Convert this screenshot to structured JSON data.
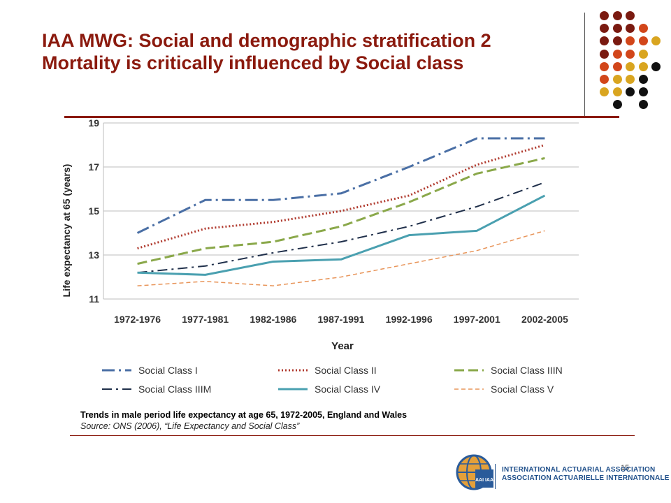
{
  "header": {
    "title_line1": "IAA MWG: Social and demographic stratification 2",
    "title_line2": "Mortality is critically influenced by Social class"
  },
  "decor": {
    "dot_colors": {
      "dark_red": "#7a1a10",
      "orange": "#d2461a",
      "gold": "#d9a520",
      "black": "#111111"
    }
  },
  "chart_data": {
    "type": "line",
    "title": "",
    "xlabel": "Year",
    "ylabel": "Life expectancy at 65 (years)",
    "categories": [
      "1972-1976",
      "1977-1981",
      "1982-1986",
      "1987-1991",
      "1992-1996",
      "1997-2001",
      "2002-2005"
    ],
    "ylim": [
      11,
      19
    ],
    "yticks": [
      11,
      13,
      15,
      17,
      19
    ],
    "grid": true,
    "legend_position": "bottom",
    "series": [
      {
        "name": "Social Class I",
        "values": [
          14.0,
          15.5,
          15.5,
          15.8,
          17.0,
          18.3,
          18.3
        ],
        "color": "#4a6fa5",
        "dash": "18,6,3,6",
        "width": 3
      },
      {
        "name": "Social Class II",
        "values": [
          13.3,
          14.2,
          14.5,
          15.0,
          15.7,
          17.1,
          18.0
        ],
        "color": "#b03a2e",
        "dash": "2,3",
        "width": 3
      },
      {
        "name": "Social Class IIIN",
        "values": [
          12.6,
          13.3,
          13.6,
          14.3,
          15.4,
          16.7,
          17.4
        ],
        "color": "#8aa84a",
        "dash": "14,6",
        "width": 3
      },
      {
        "name": "Social Class IIIM",
        "values": [
          12.2,
          12.5,
          13.1,
          13.6,
          14.3,
          15.2,
          16.3
        ],
        "color": "#1f2f4a",
        "dash": "14,6,3,6",
        "width": 2
      },
      {
        "name": "Social Class IV",
        "values": [
          12.2,
          12.1,
          12.7,
          12.8,
          13.9,
          14.1,
          15.7
        ],
        "color": "#4aa0b0",
        "dash": "",
        "width": 3
      },
      {
        "name": "Social Class V",
        "values": [
          11.6,
          11.8,
          11.6,
          12.0,
          12.6,
          13.2,
          14.1
        ],
        "color": "#e8955a",
        "dash": "6,4",
        "width": 1.5
      }
    ]
  },
  "caption": {
    "line1": "Trends in male period life expectancy at age 65, 1972-2005, England and Wales",
    "line2": "Source: ONS (2006), “Life Expectancy and Social Class”"
  },
  "page_number": "15",
  "logo": {
    "mark_text": "AAI IAA",
    "line1": "INTERNATIONAL ACTUARIAL ASSOCIATION",
    "line2": "ASSOCIATION ACTUARIELLE INTERNATIONALE"
  }
}
